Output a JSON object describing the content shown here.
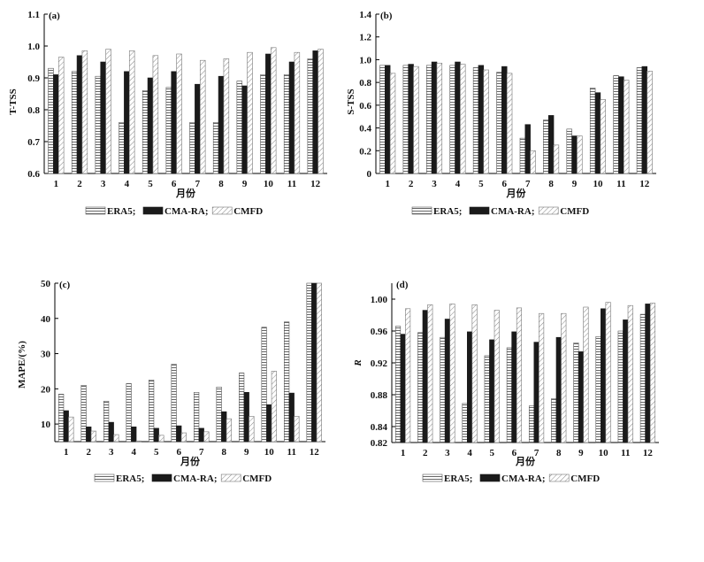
{
  "series_styles": {
    "ERA5": {
      "fill": "#ffffff",
      "pattern": "horizontal-hatch",
      "stroke": "#555555"
    },
    "CMA-RA": {
      "fill": "#1a1a1a",
      "pattern": "solid",
      "stroke": "#1a1a1a"
    },
    "CMFD": {
      "fill": "#ffffff",
      "pattern": "diagonal-hatch",
      "stroke": "#777777"
    }
  },
  "chart_data": [
    {
      "type": "bar",
      "panel_label": "(a)",
      "xlabel": "月份",
      "ylabel": "T-TSS",
      "ylim": [
        0.6,
        1.1
      ],
      "yticks": [
        "0.6",
        "0.7",
        "0.8",
        "0.9",
        "1.0",
        "1.1"
      ],
      "categories": [
        "1",
        "2",
        "3",
        "4",
        "5",
        "6",
        "7",
        "8",
        "9",
        "10",
        "11",
        "12"
      ],
      "series": [
        {
          "name": "ERA5",
          "values": [
            0.93,
            0.92,
            0.905,
            0.76,
            0.86,
            0.87,
            0.76,
            0.76,
            0.89,
            0.91,
            0.91,
            0.96
          ]
        },
        {
          "name": "CMA-RA",
          "values": [
            0.91,
            0.97,
            0.95,
            0.92,
            0.9,
            0.92,
            0.88,
            0.905,
            0.875,
            0.975,
            0.95,
            0.985
          ]
        },
        {
          "name": "CMFD",
          "values": [
            0.965,
            0.985,
            0.99,
            0.985,
            0.97,
            0.975,
            0.955,
            0.96,
            0.98,
            0.995,
            0.98,
            0.99
          ]
        }
      ],
      "legend": [
        "ERA5;",
        "CMA-RA;",
        "CMFD"
      ]
    },
    {
      "type": "bar",
      "panel_label": "(b)",
      "xlabel": "月份",
      "ylabel": "S-TSS",
      "ylim": [
        0,
        1.4
      ],
      "yticks": [
        "0",
        "0.2",
        "0.4",
        "0.6",
        "0.8",
        "1.0",
        "1.2",
        "1.4"
      ],
      "categories": [
        "1",
        "2",
        "3",
        "4",
        "5",
        "6",
        "7",
        "8",
        "9",
        "10",
        "11",
        "12"
      ],
      "series": [
        {
          "name": "ERA5",
          "values": [
            0.95,
            0.95,
            0.95,
            0.95,
            0.93,
            0.89,
            0.31,
            0.47,
            0.39,
            0.75,
            0.86,
            0.93
          ]
        },
        {
          "name": "CMA-RA",
          "values": [
            0.95,
            0.96,
            0.98,
            0.98,
            0.95,
            0.94,
            0.43,
            0.51,
            0.33,
            0.71,
            0.85,
            0.94
          ]
        },
        {
          "name": "CMFD",
          "values": [
            0.88,
            0.94,
            0.97,
            0.96,
            0.91,
            0.88,
            0.2,
            0.25,
            0.33,
            0.65,
            0.82,
            0.9
          ]
        }
      ],
      "legend": [
        "ERA5;",
        "CMA-RA;",
        "CMFD"
      ]
    },
    {
      "type": "bar",
      "panel_label": "(c)",
      "xlabel": "月份",
      "ylabel": "MAPE/(%)",
      "ylim": [
        5,
        50
      ],
      "yticks": [
        "10",
        "20",
        "30",
        "40",
        "50"
      ],
      "categories": [
        "1",
        "2",
        "3",
        "4",
        "5",
        "6",
        "7",
        "8",
        "9",
        "10",
        "11",
        "12"
      ],
      "series": [
        {
          "name": "ERA5",
          "values": [
            18.5,
            21,
            16.5,
            21.5,
            22.5,
            27,
            19,
            20.5,
            24.5,
            37.5,
            39,
            50
          ]
        },
        {
          "name": "CMA-RA",
          "values": [
            13.8,
            9.2,
            10.5,
            9.2,
            8.8,
            9.5,
            8.8,
            13.5,
            19,
            15.5,
            18.8,
            50
          ]
        },
        {
          "name": "CMFD",
          "values": [
            12,
            8,
            7,
            5.2,
            6.8,
            7.5,
            7.8,
            11.5,
            12.2,
            25,
            12.2,
            50
          ]
        }
      ],
      "legend": [
        "ERA5;",
        "CMA-RA;",
        "CMFD"
      ]
    },
    {
      "type": "bar",
      "panel_label": "(d)",
      "xlabel": "月份",
      "ylabel": "R",
      "ylim": [
        0.82,
        1.02
      ],
      "yticks": [
        "0.82",
        "0.84",
        "0.88",
        "0.92",
        "0.96",
        "1.00"
      ],
      "categories": [
        "1",
        "2",
        "3",
        "4",
        "5",
        "6",
        "7",
        "8",
        "9",
        "10",
        "11",
        "12"
      ],
      "series": [
        {
          "name": "ERA5",
          "values": [
            0.966,
            0.958,
            0.952,
            0.869,
            0.929,
            0.939,
            0.866,
            0.875,
            0.945,
            0.953,
            0.96,
            0.981
          ]
        },
        {
          "name": "CMA-RA",
          "values": [
            0.956,
            0.986,
            0.975,
            0.959,
            0.949,
            0.959,
            0.946,
            0.952,
            0.934,
            0.988,
            0.974,
            0.994
          ]
        },
        {
          "name": "CMFD",
          "values": [
            0.988,
            0.993,
            0.994,
            0.993,
            0.986,
            0.989,
            0.982,
            0.982,
            0.99,
            0.996,
            0.992,
            0.995
          ]
        }
      ],
      "legend": [
        "ERA5;",
        "CMA-RA;",
        "CMFD"
      ]
    }
  ]
}
